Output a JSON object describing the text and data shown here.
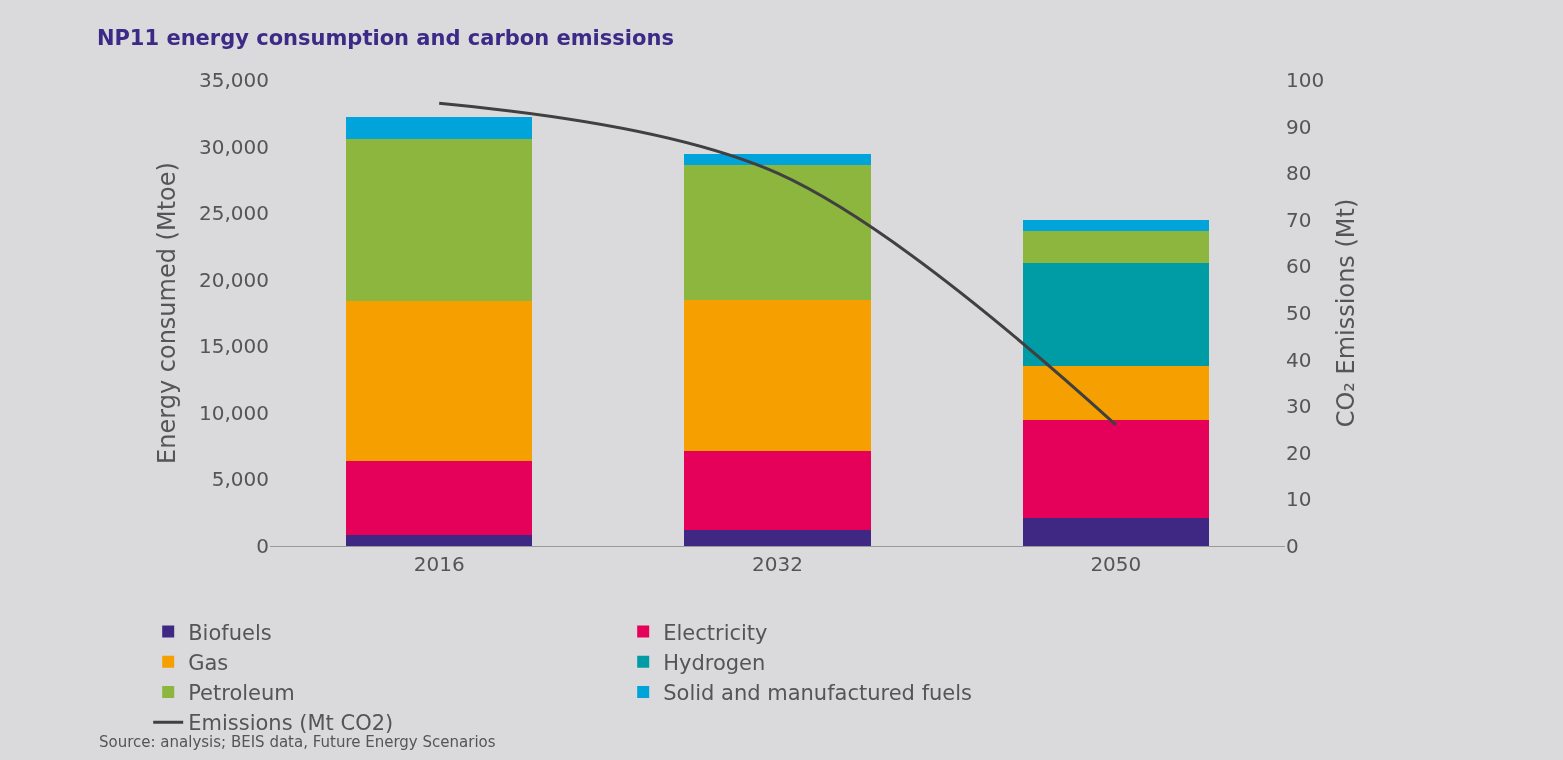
{
  "chart_data": {
    "type": "bar",
    "stacked": true,
    "title": "NP11 energy consumption and carbon emissions",
    "categories": [
      "2016",
      "2032",
      "2050"
    ],
    "ylabel": "Energy consumed (Mtoe)",
    "y2label": "CO₂ Emissions (Mt)",
    "ylim": [
      0,
      35000
    ],
    "yticks": [
      {
        "value": 0,
        "label": "0"
      },
      {
        "value": 5000,
        "label": "5,000"
      },
      {
        "value": 10000,
        "label": "10,000"
      },
      {
        "value": 15000,
        "label": "15,000"
      },
      {
        "value": 20000,
        "label": "20,000"
      },
      {
        "value": 25000,
        "label": "25,000"
      },
      {
        "value": 30000,
        "label": "30,000"
      },
      {
        "value": 35000,
        "label": "35,000"
      }
    ],
    "y2lim": [
      0,
      100
    ],
    "y2ticks": [
      0,
      10,
      20,
      30,
      40,
      50,
      60,
      70,
      80,
      90,
      100
    ],
    "series": [
      {
        "name": "Biofuels",
        "color": "#3f2784",
        "values": [
          800,
          1200,
          2100
        ]
      },
      {
        "name": "Electricity",
        "color": "#e5005a",
        "values": [
          5600,
          5900,
          7400
        ]
      },
      {
        "name": "Gas",
        "color": "#f5a000",
        "values": [
          12000,
          11350,
          4000
        ]
      },
      {
        "name": "Hydrogen",
        "color": "#009ca6",
        "values": [
          null,
          null,
          7750
        ]
      },
      {
        "name": "Petroleum",
        "color": "#8db63f",
        "values": [
          12200,
          10200,
          2400
        ]
      },
      {
        "name": "Solid and manufactured fuels",
        "color": "#00a3da",
        "values": [
          1600,
          800,
          800
        ]
      },
      {
        "name": "Emissions (Mt CO2)",
        "type": "line",
        "axis": "y2",
        "color": "#404040",
        "values": [
          95,
          80,
          26
        ]
      }
    ],
    "legend": "bottom",
    "grid": false,
    "annotations": [
      "Source: analysis; BEIS data, Future Energy Scenarios"
    ]
  }
}
